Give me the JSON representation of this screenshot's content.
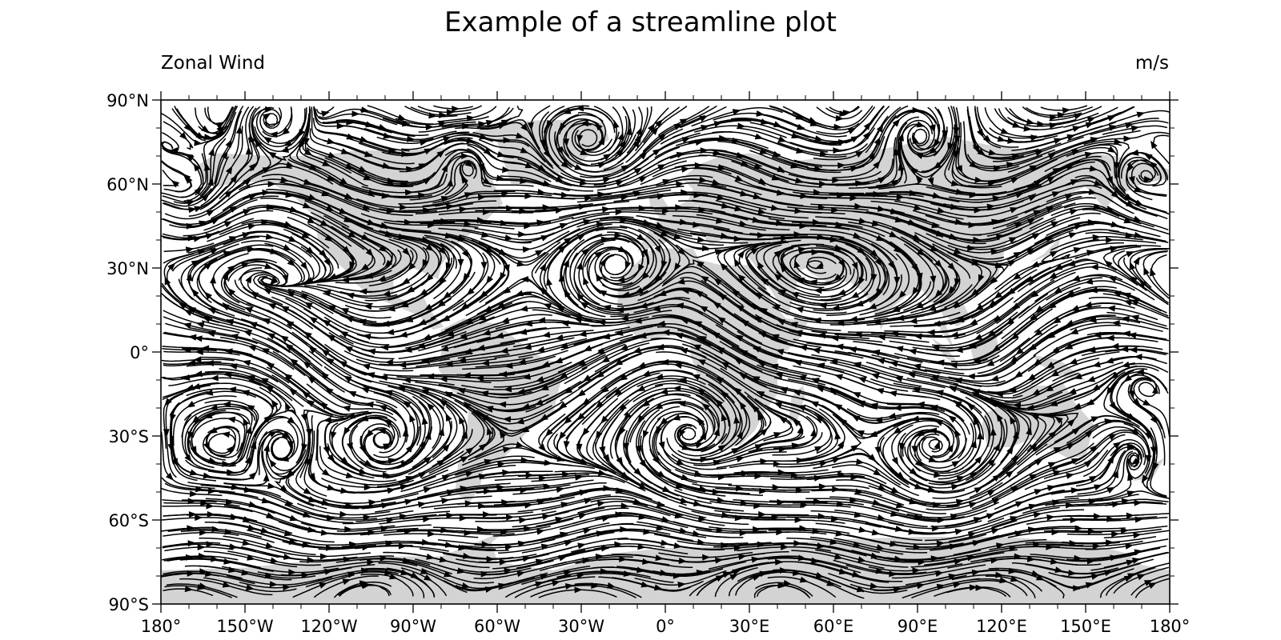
{
  "chart_data": {
    "type": "streamline",
    "title": "Example of a streamline plot",
    "left_string": "Zonal Wind",
    "right_string": "m/s",
    "projection": "cylindrical equidistant",
    "xlim": [
      -180,
      180
    ],
    "ylim": [
      -90,
      90
    ],
    "x_ticks": [
      {
        "value": -180,
        "label": "180°"
      },
      {
        "value": -150,
        "label": "150°W"
      },
      {
        "value": -120,
        "label": "120°W"
      },
      {
        "value": -90,
        "label": "90°W"
      },
      {
        "value": -60,
        "label": "60°W"
      },
      {
        "value": -30,
        "label": "30°W"
      },
      {
        "value": 0,
        "label": "0°"
      },
      {
        "value": 30,
        "label": "30°E"
      },
      {
        "value": 60,
        "label": "60°E"
      },
      {
        "value": 90,
        "label": "90°E"
      },
      {
        "value": 120,
        "label": "120°E"
      },
      {
        "value": 150,
        "label": "150°E"
      },
      {
        "value": 180,
        "label": "180°"
      }
    ],
    "y_ticks": [
      {
        "value": 90,
        "label": "90°N"
      },
      {
        "value": 60,
        "label": "60°N"
      },
      {
        "value": 30,
        "label": "30°N"
      },
      {
        "value": 0,
        "label": "0°"
      },
      {
        "value": -30,
        "label": "30°S"
      },
      {
        "value": -60,
        "label": "60°S"
      },
      {
        "value": -90,
        "label": "90°S"
      }
    ],
    "land_color": "#d3d3d3",
    "line_color": "#000000",
    "land": [
      [
        [
          -168,
          66
        ],
        [
          -160,
          71
        ],
        [
          -140,
          70
        ],
        [
          -125,
          70
        ],
        [
          -110,
          72
        ],
        [
          -95,
          72
        ],
        [
          -80,
          73
        ],
        [
          -70,
          70
        ],
        [
          -62,
          62
        ],
        [
          -58,
          53
        ],
        [
          -66,
          45
        ],
        [
          -75,
          38
        ],
        [
          -80,
          31
        ],
        [
          -81,
          26
        ],
        [
          -90,
          30
        ],
        [
          -97,
          27
        ],
        [
          -97,
          20
        ],
        [
          -92,
          18
        ],
        [
          -87,
          21
        ],
        [
          -84,
          15
        ],
        [
          -79,
          9
        ],
        [
          -83,
          8
        ],
        [
          -88,
          13
        ],
        [
          -95,
          16
        ],
        [
          -105,
          20
        ],
        [
          -110,
          24
        ],
        [
          -115,
          30
        ],
        [
          -120,
          34
        ],
        [
          -124,
          40
        ],
        [
          -125,
          48
        ],
        [
          -132,
          55
        ],
        [
          -140,
          60
        ],
        [
          -150,
          61
        ],
        [
          -160,
          59
        ],
        [
          -165,
          62
        ]
      ],
      [
        [
          -80,
          8
        ],
        [
          -72,
          12
        ],
        [
          -60,
          10
        ],
        [
          -50,
          2
        ],
        [
          -44,
          -2
        ],
        [
          -35,
          -5
        ],
        [
          -38,
          -13
        ],
        [
          -40,
          -22
        ],
        [
          -48,
          -27
        ],
        [
          -55,
          -35
        ],
        [
          -58,
          -38
        ],
        [
          -65,
          -42
        ],
        [
          -66,
          -48
        ],
        [
          -70,
          -54
        ],
        [
          -75,
          -50
        ],
        [
          -74,
          -40
        ],
        [
          -71,
          -30
        ],
        [
          -70,
          -18
        ],
        [
          -76,
          -14
        ],
        [
          -81,
          -6
        ],
        [
          -80,
          0
        ]
      ],
      [
        [
          -55,
          60
        ],
        [
          -45,
          60
        ],
        [
          -30,
          68
        ],
        [
          -20,
          76
        ],
        [
          -22,
          82
        ],
        [
          -40,
          83
        ],
        [
          -60,
          82
        ],
        [
          -70,
          78
        ],
        [
          -60,
          75
        ]
      ],
      [
        [
          -10,
          36
        ],
        [
          -6,
          43
        ],
        [
          -2,
          48
        ],
        [
          -5,
          51
        ],
        [
          2,
          51
        ],
        [
          8,
          54
        ],
        [
          10,
          58
        ],
        [
          6,
          62
        ],
        [
          12,
          67
        ],
        [
          20,
          70
        ],
        [
          30,
          71
        ],
        [
          45,
          68
        ],
        [
          60,
          70
        ],
        [
          80,
          73
        ],
        [
          100,
          77
        ],
        [
          115,
          74
        ],
        [
          130,
          72
        ],
        [
          145,
          72
        ],
        [
          160,
          70
        ],
        [
          175,
          67
        ],
        [
          180,
          65
        ],
        [
          180,
          62
        ],
        [
          170,
          60
        ],
        [
          160,
          55
        ],
        [
          157,
          51
        ],
        [
          150,
          59
        ],
        [
          140,
          55
        ],
        [
          135,
          48
        ],
        [
          130,
          42
        ],
        [
          122,
          40
        ],
        [
          120,
          32
        ],
        [
          118,
          25
        ],
        [
          110,
          21
        ],
        [
          106,
          18
        ],
        [
          109,
          12
        ],
        [
          104,
          9
        ],
        [
          100,
          13
        ],
        [
          98,
          8
        ],
        [
          103,
          1
        ],
        [
          98,
          16
        ],
        [
          94,
          18
        ],
        [
          92,
          22
        ],
        [
          86,
          20
        ],
        [
          80,
          15
        ],
        [
          77,
          8
        ],
        [
          73,
          18
        ],
        [
          70,
          22
        ],
        [
          66,
          25
        ],
        [
          58,
          25
        ],
        [
          56,
          26
        ],
        [
          52,
          28
        ],
        [
          50,
          30
        ],
        [
          48,
          29
        ],
        [
          44,
          13
        ],
        [
          43,
          13
        ],
        [
          39,
          20
        ],
        [
          34,
          28
        ],
        [
          32,
          31
        ],
        [
          28,
          36
        ],
        [
          26,
          40
        ],
        [
          20,
          40
        ],
        [
          16,
          38
        ],
        [
          12,
          44
        ],
        [
          5,
          43
        ],
        [
          0,
          39
        ],
        [
          -6,
          37
        ]
      ],
      [
        [
          -17,
          21
        ],
        [
          -15,
          28
        ],
        [
          -10,
          32
        ],
        [
          -6,
          36
        ],
        [
          0,
          37
        ],
        [
          10,
          37
        ],
        [
          12,
          33
        ],
        [
          20,
          31
        ],
        [
          30,
          31
        ],
        [
          34,
          28
        ],
        [
          38,
          18
        ],
        [
          43,
          12
        ],
        [
          51,
          11
        ],
        [
          48,
          5
        ],
        [
          40,
          -3
        ],
        [
          40,
          -15
        ],
        [
          35,
          -22
        ],
        [
          32,
          -28
        ],
        [
          27,
          -33
        ],
        [
          20,
          -35
        ],
        [
          18,
          -30
        ],
        [
          13,
          -20
        ],
        [
          12,
          -10
        ],
        [
          9,
          -1
        ],
        [
          9,
          4
        ],
        [
          4,
          6
        ],
        [
          -4,
          5
        ],
        [
          -8,
          4
        ],
        [
          -13,
          8
        ],
        [
          -17,
          14
        ]
      ],
      [
        [
          44,
          -25
        ],
        [
          47,
          -25
        ],
        [
          50,
          -15
        ],
        [
          49,
          -12
        ],
        [
          45,
          -16
        ]
      ],
      [
        [
          114,
          -22
        ],
        [
          122,
          -18
        ],
        [
          130,
          -12
        ],
        [
          137,
          -12
        ],
        [
          142,
          -11
        ],
        [
          146,
          -18
        ],
        [
          153,
          -26
        ],
        [
          150,
          -37
        ],
        [
          144,
          -38
        ],
        [
          138,
          -35
        ],
        [
          131,
          -31
        ],
        [
          123,
          -34
        ],
        [
          115,
          -34
        ],
        [
          113,
          -26
        ]
      ],
      [
        [
          95,
          5
        ],
        [
          100,
          2
        ],
        [
          106,
          -6
        ],
        [
          100,
          -2
        ]
      ],
      [
        [
          110,
          -7
        ],
        [
          115,
          -8
        ],
        [
          112,
          -8
        ]
      ],
      [
        [
          109,
          1
        ],
        [
          118,
          7
        ],
        [
          119,
          0
        ],
        [
          116,
          -4
        ],
        [
          110,
          -3
        ]
      ],
      [
        [
          131,
          -1
        ],
        [
          141,
          -3
        ],
        [
          150,
          -10
        ],
        [
          141,
          -9
        ],
        [
          133,
          -4
        ]
      ],
      [
        [
          130,
          32
        ],
        [
          135,
          35
        ],
        [
          141,
          41
        ],
        [
          140,
          36
        ],
        [
          133,
          33
        ]
      ],
      [
        [
          -5,
          50
        ],
        [
          1,
          52
        ],
        [
          -3,
          58
        ],
        [
          -6,
          56
        ]
      ],
      [
        [
          -24,
          64
        ],
        [
          -14,
          64
        ],
        [
          -14,
          66
        ],
        [
          -22,
          66
        ]
      ],
      [
        [
          172,
          -41
        ],
        [
          178,
          -38
        ],
        [
          174,
          -45
        ],
        [
          167,
          -46
        ]
      ],
      [
        [
          -180,
          -78
        ],
        [
          -150,
          -77
        ],
        [
          -120,
          -74
        ],
        [
          -100,
          -73
        ],
        [
          -80,
          -73
        ],
        [
          -60,
          -65
        ],
        [
          -57,
          -64
        ],
        [
          -62,
          -68
        ],
        [
          -60,
          -75
        ],
        [
          -40,
          -78
        ],
        [
          -20,
          -72
        ],
        [
          0,
          -70
        ],
        [
          30,
          -69
        ],
        [
          60,
          -67
        ],
        [
          90,
          -66
        ],
        [
          120,
          -66
        ],
        [
          150,
          -68
        ],
        [
          165,
          -72
        ],
        [
          170,
          -76
        ],
        [
          180,
          -78
        ],
        [
          180,
          -90
        ],
        [
          -180,
          -90
        ]
      ]
    ],
    "vortices": [
      {
        "lon": -20,
        "lat": 32,
        "r": 11,
        "dir": -1
      },
      {
        "lon": 7,
        "lat": -30,
        "r": 13,
        "dir": 1
      },
      {
        "lon": -141,
        "lat": 83,
        "r": 7,
        "dir": -1
      },
      {
        "lon": -170,
        "lat": 54,
        "r": 10,
        "dir": 1
      },
      {
        "lon": -137,
        "lat": -34,
        "r": 7,
        "dir": -1
      },
      {
        "lon": 97,
        "lat": -33,
        "r": 12,
        "dir": 1
      },
      {
        "lon": 168,
        "lat": -35,
        "r": 9,
        "dir": -1
      },
      {
        "lon": -28,
        "lat": 75,
        "r": 10,
        "dir": 1
      },
      {
        "lon": -72,
        "lat": 68,
        "r": 6,
        "dir": -1
      },
      {
        "lon": 90,
        "lat": 78,
        "r": 9,
        "dir": -1
      },
      {
        "lon": 170,
        "lat": 60,
        "r": 8,
        "dir": 1
      },
      {
        "lon": 170,
        "lat": -12,
        "r": 6,
        "dir": 1
      },
      {
        "lon": -100,
        "lat": -32,
        "r": 7,
        "dir": 1
      }
    ],
    "grid": false
  }
}
